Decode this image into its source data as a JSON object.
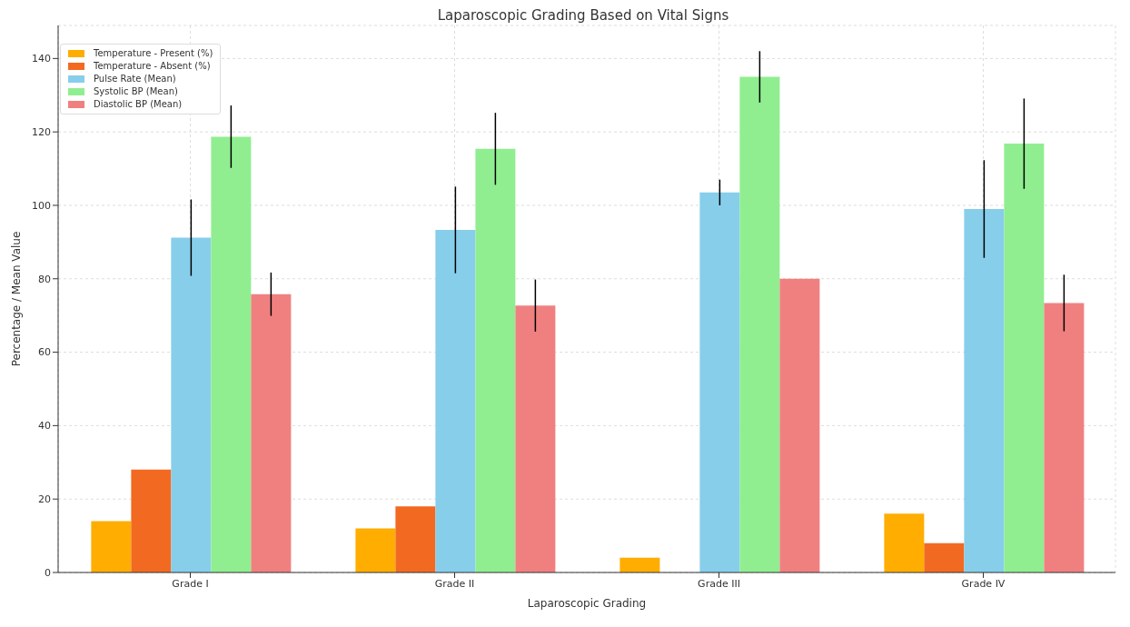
{
  "chart_data": {
    "type": "bar",
    "title": "Laparoscopic Grading Based on Vital Signs",
    "xlabel": "Laparoscopic Grading",
    "ylabel": "Percentage / Mean Value",
    "categories": [
      "Grade I",
      "Grade II",
      "Grade III",
      "Grade IV"
    ],
    "series": [
      {
        "name": "Temperature - Present (%)",
        "color": "#ffad00",
        "values": [
          14,
          12,
          4,
          16
        ]
      },
      {
        "name": "Temperature - Absent (%)",
        "color": "#f26a21",
        "values": [
          28,
          18,
          0,
          8
        ]
      },
      {
        "name": "Pulse Rate (Mean)",
        "color": "#87ceeb",
        "values": [
          91.2,
          93.3,
          103.5,
          99
        ],
        "errors": [
          10.4,
          11.8,
          3.5,
          13.3
        ]
      },
      {
        "name": "Systolic BP (Mean)",
        "color": "#90ee90",
        "values": [
          118.7,
          115.4,
          135,
          116.8
        ],
        "errors": [
          8.5,
          9.8,
          7,
          12.3
        ]
      },
      {
        "name": "Diastolic BP (Mean)",
        "color": "#f08080",
        "values": [
          75.8,
          72.7,
          80,
          73.4
        ],
        "errors": [
          5.9,
          7.1,
          null,
          7.7
        ]
      }
    ],
    "ylim": [
      0,
      149
    ],
    "yticks": [
      0,
      20,
      40,
      60,
      80,
      100,
      120,
      140
    ],
    "grid": true,
    "legend": "top left"
  }
}
